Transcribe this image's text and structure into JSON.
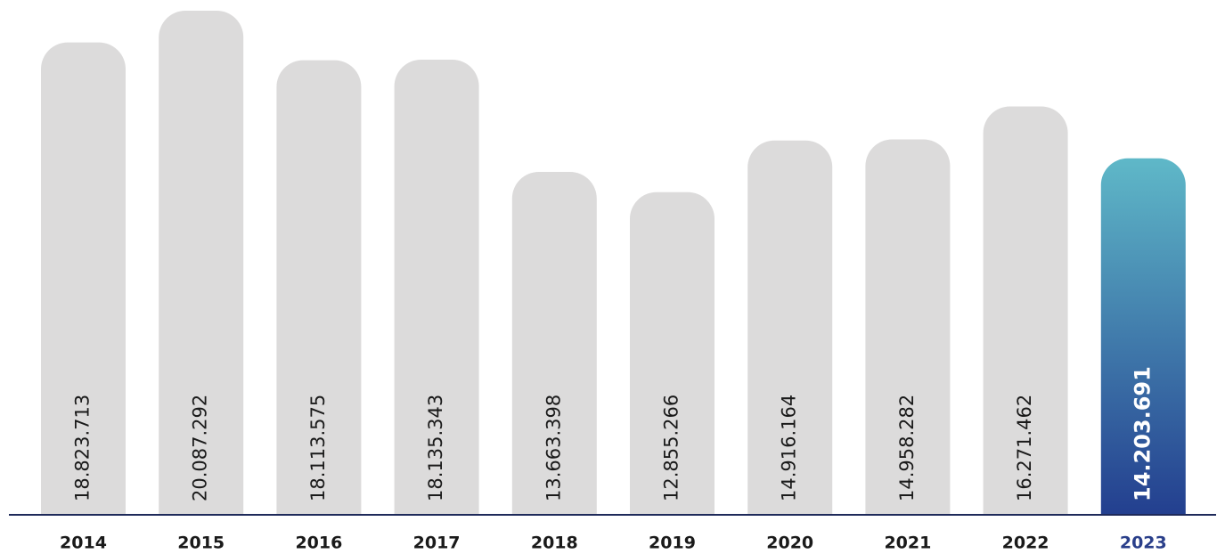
{
  "chart_data": {
    "type": "bar",
    "categories": [
      "2014",
      "2015",
      "2016",
      "2017",
      "2018",
      "2019",
      "2020",
      "2021",
      "2022",
      "2023"
    ],
    "values": [
      18823713,
      20087292,
      18113575,
      18135343,
      13663398,
      12855266,
      14916164,
      14958282,
      16271462,
      14203691
    ],
    "value_labels": [
      "18.823.713",
      "20.087.292",
      "18.113.575",
      "18.135.343",
      "13.663.398",
      "12.855.266",
      "14.916.164",
      "14.958.282",
      "16.271.462",
      "14.203.691"
    ],
    "color": "#dcdbdb",
    "highlight": {
      "category": "2023",
      "color_top": "#5fb8c8",
      "color_bottom": "#233f8f"
    },
    "axis_color": "#1e2a5a"
  }
}
